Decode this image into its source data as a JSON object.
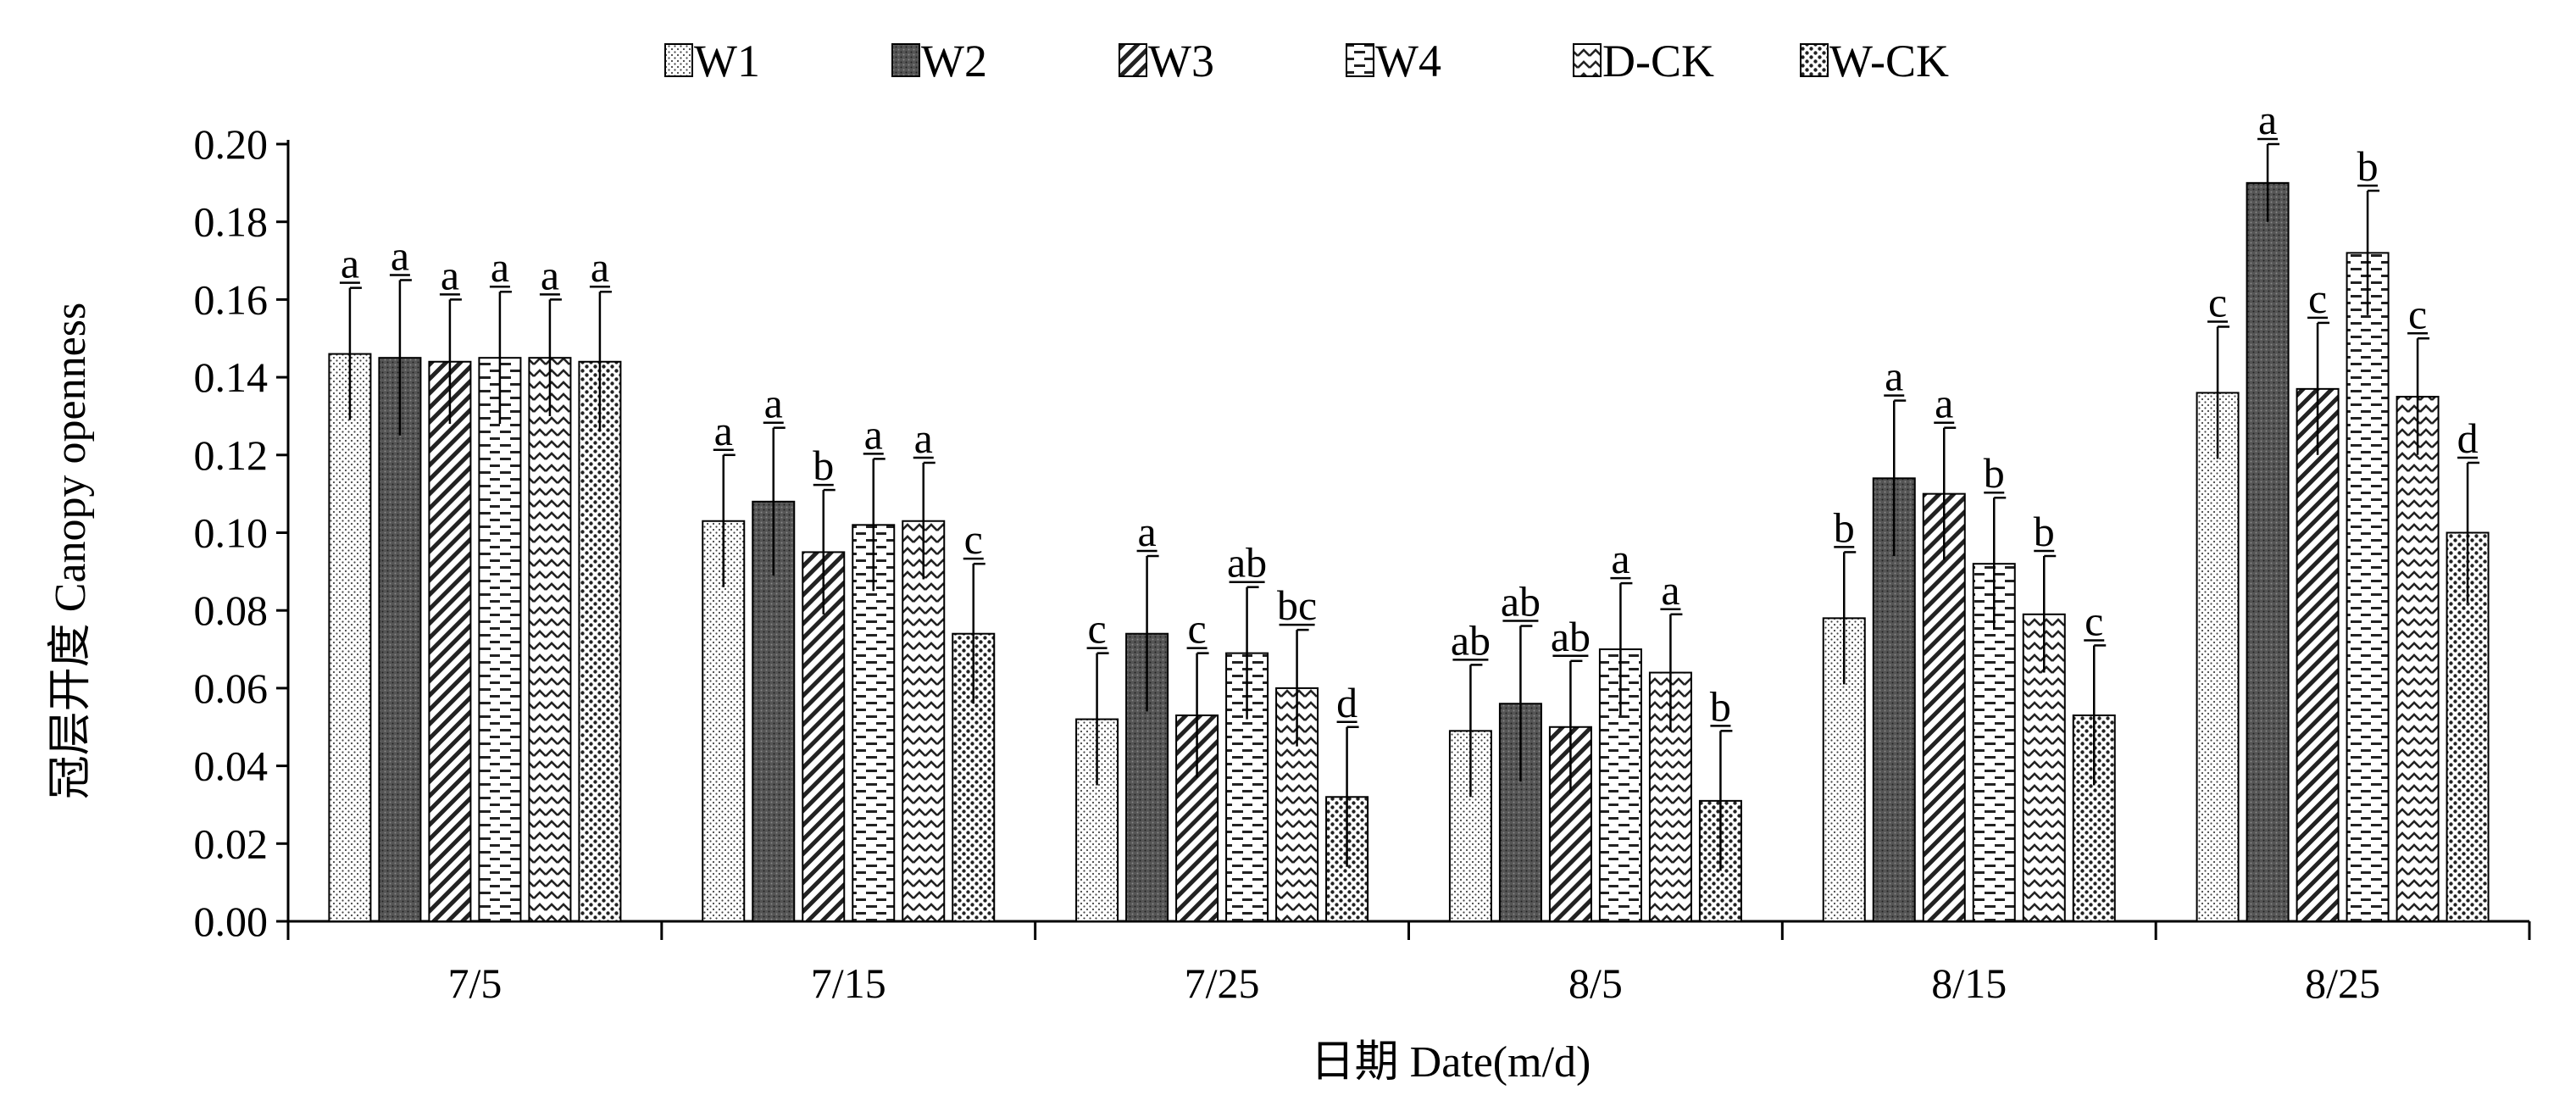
{
  "chart_data": {
    "type": "bar",
    "xlabel": "日期  Date(m/d)",
    "ylabel": "冠层开度  Canopy openness",
    "ylim": [
      0,
      0.2
    ],
    "ytick_step": 0.02,
    "yticks": [
      "0.00",
      "0.02",
      "0.04",
      "0.06",
      "0.08",
      "0.10",
      "0.12",
      "0.14",
      "0.16",
      "0.18",
      "0.20"
    ],
    "grid": false,
    "legend_position": "top",
    "categories": [
      "7/5",
      "7/15",
      "7/25",
      "8/5",
      "8/15",
      "8/25"
    ],
    "series": [
      {
        "name": "W1",
        "pattern": "fine-dots",
        "values": [
          0.146,
          0.103,
          0.052,
          0.049,
          0.078,
          0.136
        ],
        "errors": [
          0.017,
          0.017,
          0.017,
          0.017,
          0.017,
          0.017
        ],
        "labels": [
          "a",
          "a",
          "c",
          "ab",
          "b",
          "c"
        ]
      },
      {
        "name": "W2",
        "pattern": "dark-dense",
        "values": [
          0.145,
          0.108,
          0.074,
          0.056,
          0.114,
          0.19
        ],
        "errors": [
          0.02,
          0.019,
          0.02,
          0.02,
          0.02,
          0.01
        ],
        "labels": [
          "a",
          "a",
          "a",
          "ab",
          "a",
          "a"
        ]
      },
      {
        "name": "W3",
        "pattern": "diagonal-lines",
        "values": [
          0.144,
          0.095,
          0.053,
          0.05,
          0.11,
          0.137
        ],
        "errors": [
          0.016,
          0.016,
          0.016,
          0.017,
          0.017,
          0.017
        ],
        "labels": [
          "a",
          "b",
          "c",
          "ab",
          "a",
          "c"
        ]
      },
      {
        "name": "W4",
        "pattern": "horizontal-dashes",
        "values": [
          0.145,
          0.102,
          0.069,
          0.07,
          0.092,
          0.172
        ],
        "errors": [
          0.017,
          0.017,
          0.017,
          0.017,
          0.017,
          0.016
        ],
        "labels": [
          "a",
          "a",
          "ab",
          "a",
          "b",
          "b"
        ]
      },
      {
        "name": "D-CK",
        "pattern": "zigzag",
        "values": [
          0.145,
          0.103,
          0.06,
          0.064,
          0.079,
          0.135
        ],
        "errors": [
          0.015,
          0.015,
          0.015,
          0.015,
          0.015,
          0.015
        ],
        "labels": [
          "a",
          "a",
          "bc",
          "a",
          "b",
          "c"
        ]
      },
      {
        "name": "W-CK",
        "pattern": "coarse-dots",
        "values": [
          0.144,
          0.074,
          0.032,
          0.031,
          0.053,
          0.1
        ],
        "errors": [
          0.018,
          0.018,
          0.018,
          0.018,
          0.018,
          0.018
        ],
        "labels": [
          "a",
          "c",
          "d",
          "b",
          "c",
          "d"
        ]
      }
    ]
  }
}
